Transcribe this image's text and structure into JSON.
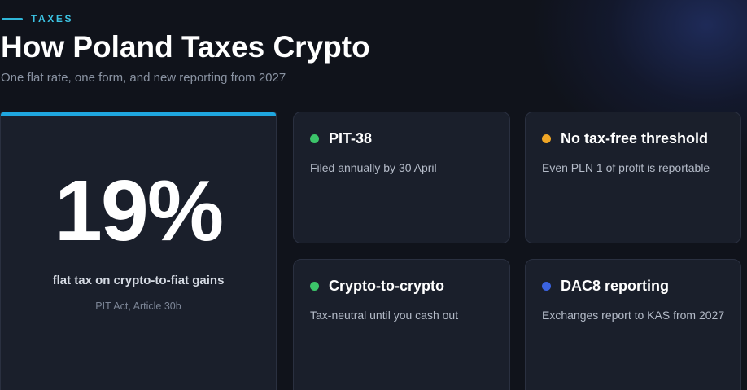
{
  "header": {
    "eyebrow": "TAXES",
    "title": "How Poland Taxes Crypto",
    "subtitle": "One flat rate, one form, and new reporting from 2027"
  },
  "hero": {
    "rate": "19%",
    "label": "flat tax on crypto-to-fiat gains",
    "source": "PIT Act, Article 30b",
    "accent_color": "#1fa6df"
  },
  "cards": [
    {
      "title": "PIT-38",
      "body": "Filed annually by 30 April",
      "dot_color": "#3cc46a"
    },
    {
      "title": "No tax-free threshold",
      "body": "Even PLN 1 of profit is reportable",
      "dot_color": "#f0a626"
    },
    {
      "title": "Crypto-to-crypto",
      "body": "Tax-neutral until you cash out",
      "dot_color": "#3cc46a"
    },
    {
      "title": "DAC8 reporting",
      "body": "Exchanges report to KAS from 2027",
      "dot_color": "#3b63e0"
    }
  ]
}
